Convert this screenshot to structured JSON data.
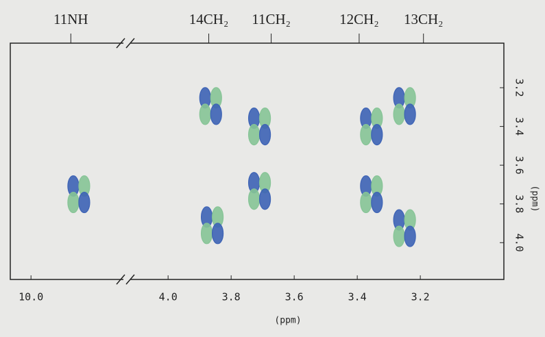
{
  "chart_data": {
    "type": "contour-peaks",
    "x_label": "(ppm)",
    "y_label": "(ppm)",
    "xlim": [
      10.065,
      2.935
    ],
    "xbreak": [
      9.71,
      4.12
    ],
    "ylim": [
      2.97,
      4.19
    ],
    "xticks": [
      {
        "value": 10,
        "label": "10.0"
      },
      {
        "value": 4,
        "label": "4.0"
      },
      3.8,
      3.6,
      3.4,
      3.2
    ],
    "yticks": [
      3.2,
      3.4,
      3.6,
      3.8,
      {
        "value": 4,
        "label": "4.0"
      }
    ],
    "annotations": [
      {
        "text": "11NH",
        "x": 9.875
      },
      {
        "text": "14CH₂",
        "x": 3.871
      },
      {
        "text": "11CH₂",
        "x": 3.673
      },
      {
        "text": "12CH₂",
        "x": 3.394
      },
      {
        "text": "13CH₂",
        "x": 3.19
      }
    ],
    "x": [
      9.85,
      3.865,
      3.71,
      3.355,
      3.25,
      3.71,
      3.355,
      3.86,
      3.25
    ],
    "y": [
      3.75,
      3.295,
      3.4,
      3.4,
      3.295,
      3.733,
      3.75,
      3.91,
      3.925
    ],
    "colors": [
      "#3d63b5",
      "#86c496"
    ]
  }
}
